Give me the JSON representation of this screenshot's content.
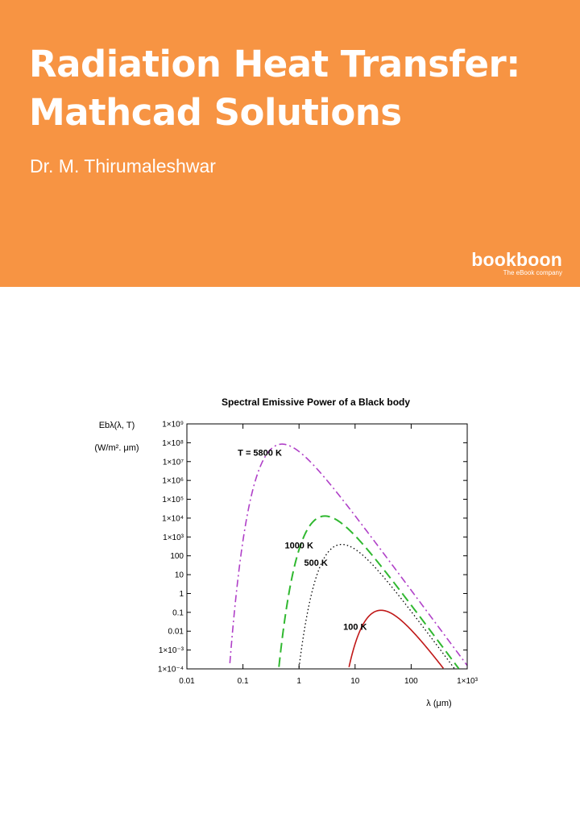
{
  "cover": {
    "title_line1": "Radiation Heat Transfer:",
    "title_line2": "Mathcad Solutions",
    "author": "Dr. M. Thirumaleshwar",
    "publisher": "bookboon",
    "publisher_tagline": "The eBook company",
    "banner_color": "#f79443"
  },
  "chart_data": {
    "type": "line",
    "title": "Spectral Emissive Power of a Black body",
    "ylabel_line1": "Ebλ(λ, T)",
    "ylabel_line2": "(W/m². μm)",
    "xlabel": "λ (μm)",
    "x_scale": "log",
    "y_scale": "log",
    "xlim": [
      0.01,
      1000
    ],
    "ylim": [
      0.0001,
      1000000000
    ],
    "x_ticks": [
      {
        "v": 0.01,
        "label": "0.01"
      },
      {
        "v": 0.1,
        "label": "0.1"
      },
      {
        "v": 1,
        "label": "1"
      },
      {
        "v": 10,
        "label": "10"
      },
      {
        "v": 100,
        "label": "100"
      },
      {
        "v": 1000,
        "label": "1×10³"
      }
    ],
    "y_ticks": [
      {
        "v": 0.0001,
        "label": "1×10⁻⁴"
      },
      {
        "v": 0.001,
        "label": "1×10⁻³"
      },
      {
        "v": 0.01,
        "label": "0.01"
      },
      {
        "v": 0.1,
        "label": "0.1"
      },
      {
        "v": 1,
        "label": "1"
      },
      {
        "v": 10,
        "label": "10"
      },
      {
        "v": 100,
        "label": "100"
      },
      {
        "v": 1000,
        "label": "1×10³"
      },
      {
        "v": 10000,
        "label": "1×10⁴"
      },
      {
        "v": 100000,
        "label": "1×10⁵"
      },
      {
        "v": 1000000,
        "label": "1×10⁶"
      },
      {
        "v": 10000000,
        "label": "1×10⁷"
      },
      {
        "v": 100000000,
        "label": "1×10⁸"
      },
      {
        "v": 1000000000,
        "label": "1×10⁹"
      }
    ],
    "series": [
      {
        "name": "T = 5800 K",
        "temperature": 5800,
        "color": "#b040c8",
        "style": "dashdot",
        "label_at": [
          0.2,
          20000000
        ]
      },
      {
        "name": "1000 K",
        "temperature": 1000,
        "color": "#30b830",
        "style": "dashed",
        "label_at": [
          1.0,
          250
        ]
      },
      {
        "name": "500 K",
        "temperature": 500,
        "color": "#000000",
        "style": "dotted",
        "label_at": [
          2.0,
          30
        ]
      },
      {
        "name": "100 K",
        "temperature": 100,
        "color": "#c01818",
        "style": "solid",
        "label_at": [
          10,
          0.012
        ]
      }
    ],
    "grid": false
  }
}
